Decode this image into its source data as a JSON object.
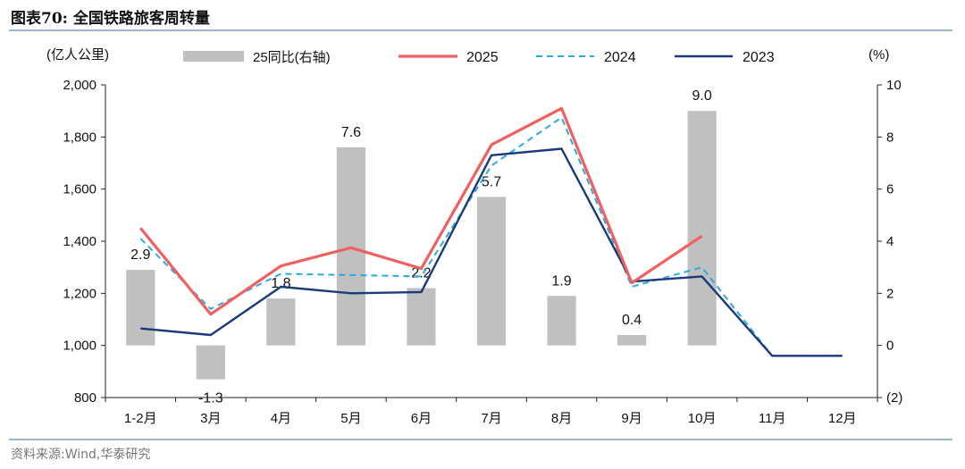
{
  "header": {
    "title": "图表70:  全国铁路旅客周转量"
  },
  "footer": {
    "source": "资料来源:Wind,华泰研究"
  },
  "colors": {
    "bar": "#c0c0c0",
    "s2025": "#f06060",
    "s2024": "#29abe2",
    "s2023": "#1a3a7a",
    "rule": "#9fb4d2"
  },
  "chart_data": {
    "type": "bar+line",
    "left_axis": {
      "unit_label": "(亿人公里)",
      "range": [
        800,
        2000
      ],
      "ticks": [
        "800",
        "1,000",
        "1,200",
        "1,400",
        "1,600",
        "1,800",
        "2,000"
      ],
      "tick_values": [
        800,
        1000,
        1200,
        1400,
        1600,
        1800,
        2000
      ]
    },
    "right_axis": {
      "unit_label": "(%)",
      "range": [
        -2,
        10
      ],
      "ticks": [
        "(2)",
        "0",
        "2",
        "4",
        "6",
        "8",
        "10"
      ],
      "tick_values": [
        -2,
        0,
        2,
        4,
        6,
        8,
        10
      ]
    },
    "categories": [
      "1-2月",
      "3月",
      "4月",
      "5月",
      "6月",
      "7月",
      "8月",
      "9月",
      "10月",
      "11月",
      "12月"
    ],
    "bars": {
      "name": "25同比(右轴)",
      "values": [
        2.9,
        -1.3,
        1.8,
        7.6,
        2.2,
        5.7,
        1.9,
        0.4,
        9.0,
        null,
        null
      ],
      "labels": [
        "2.9",
        "-1.3",
        "1.8",
        "7.6",
        "2.2",
        "5.7",
        "1.9",
        "0.4",
        "9.0",
        "",
        ""
      ]
    },
    "series": [
      {
        "name": "2025",
        "values": [
          1450,
          1120,
          1305,
          1375,
          1295,
          1770,
          1910,
          1240,
          1420,
          null,
          null
        ]
      },
      {
        "name": "2024",
        "values": [
          1410,
          1140,
          1275,
          1270,
          1265,
          1690,
          1875,
          1225,
          1300,
          960,
          960
        ]
      },
      {
        "name": "2023",
        "values": [
          1065,
          1040,
          1225,
          1200,
          1205,
          1730,
          1755,
          1245,
          1265,
          960,
          960
        ]
      }
    ]
  }
}
